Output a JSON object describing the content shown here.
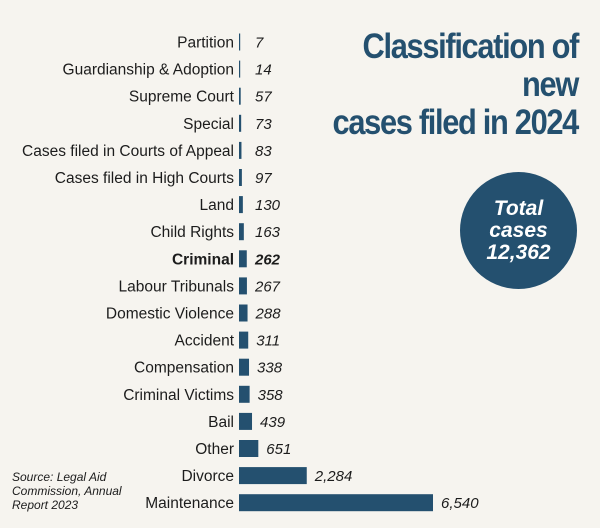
{
  "title_lines": [
    "Classification of new",
    "cases filed in 2024"
  ],
  "badge": {
    "line1": "Total",
    "line2": "cases",
    "line3": "12,362"
  },
  "source_lines": [
    "Source: Legal Aid",
    "Commission, Annual",
    "Report 2023"
  ],
  "colors": {
    "bar": "#24506f",
    "accent": "#24506f",
    "background": "#f6f4ef"
  },
  "chart_data": {
    "type": "bar",
    "orientation": "horizontal",
    "title": "Classification of new cases filed in 2024",
    "categories": [
      "Partition",
      "Guardianship & Adoption",
      "Supreme Court",
      "Special",
      "Cases filed in Courts of Appeal",
      "Cases filed in High Courts",
      "Land",
      "Child Rights",
      "Criminal",
      "Labour Tribunals",
      "Domestic Violence",
      "Accident",
      "Compensation",
      "Criminal Victims",
      "Bail",
      "Other",
      "Divorce",
      "Maintenance"
    ],
    "values": [
      7,
      14,
      57,
      73,
      83,
      97,
      130,
      163,
      262,
      267,
      288,
      311,
      338,
      358,
      439,
      651,
      2284,
      6540
    ],
    "value_labels": [
      "7",
      "14",
      "57",
      "73",
      "83",
      "97",
      "130",
      "163",
      "262",
      "267",
      "288",
      "311",
      "338",
      "358",
      "439",
      "651",
      "2,284",
      "6,540"
    ],
    "highlight": "Criminal",
    "xlabel": "",
    "ylabel": "",
    "xlim": [
      0,
      6540
    ],
    "grid": false,
    "legend": "none"
  }
}
